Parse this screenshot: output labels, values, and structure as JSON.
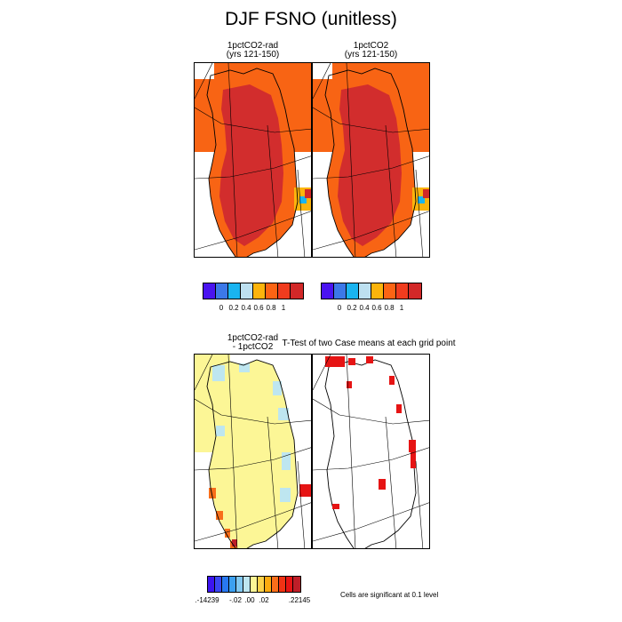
{
  "title": "DJF FSNO (unitless)",
  "panels": {
    "p1": {
      "line1": "1pctCO2-rad",
      "line2": "(yrs 121-150)"
    },
    "p2": {
      "line1": "1pctCO2",
      "line2": "(yrs 121-150)"
    },
    "p3": {
      "line1": "1pctCO2-rad",
      "line2": "- 1pctCO2"
    },
    "p4": {
      "line1": "T-Test of two Case means at each grid point"
    }
  },
  "colorbar_top": {
    "colors": [
      "#4a14f0",
      "#3c78e8",
      "#1ab4f0",
      "#bde0f0",
      "#fcb40c",
      "#fc6414",
      "#f03c1e",
      "#d22828"
    ],
    "labels": [
      "0",
      "0.2",
      "0.4",
      "0.6",
      "0.8",
      "1"
    ]
  },
  "colorbar_bottom": {
    "colors": [
      "#3c14f0",
      "#3a46f2",
      "#2878f0",
      "#3ca0f0",
      "#82c8f0",
      "#bee6f0",
      "#fcf696",
      "#fcd24b",
      "#fcaa0f",
      "#f86e1a",
      "#f03214",
      "#e61414",
      "#be1e28"
    ],
    "labels": [
      ".-14239",
      "-.02",
      ".00",
      ".02",
      ".22145"
    ]
  },
  "significance_note": "Cells are significant at 0.1 level",
  "chart_data": {
    "type": "heatmap",
    "variable": "DJF FSNO (unitless)",
    "region": "Greenland",
    "panels": [
      {
        "case": "1pctCO2-rad (yrs 121-150)",
        "interior_value": 1.0,
        "margin_value": 0.8,
        "coastal_values": [
          0.4,
          0.6,
          0.8
        ]
      },
      {
        "case": "1pctCO2 (yrs 121-150)",
        "interior_value": 1.0,
        "margin_value": 0.8,
        "coastal_values": [
          0.4,
          0.6,
          0.8
        ]
      },
      {
        "case": "1pctCO2-rad - 1pctCO2",
        "interior_value": 0.0,
        "margin_value": -0.02,
        "southern_tip_value": 0.22145,
        "range": [
          -0.14239,
          0.22145
        ]
      },
      {
        "case": "T-Test of two Case means at each grid point",
        "significance_level": 0.1
      }
    ],
    "colorbar_top_levels": [
      0,
      0.2,
      0.4,
      0.6,
      0.8,
      1
    ],
    "colorbar_bottom_levels": [
      -0.14239,
      -0.02,
      0.0,
      0.02,
      0.22145
    ]
  }
}
